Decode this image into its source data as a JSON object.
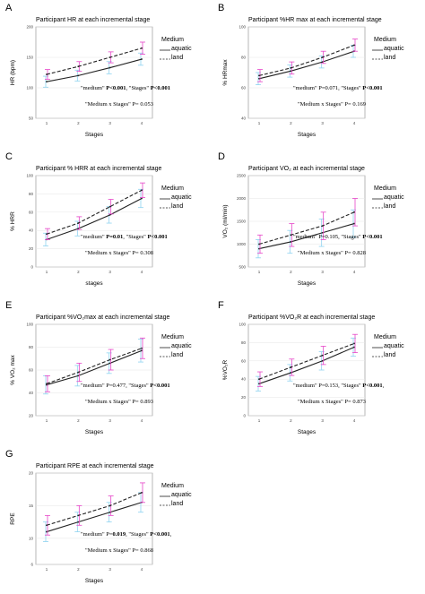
{
  "colors": {
    "aquatic_line": "#222222",
    "land_line": "#222222",
    "aquatic_error": "#8fd3f0",
    "land_error": "#e645c8",
    "axis": "#888888",
    "grid": "#e6e6e6"
  },
  "legend": {
    "title": "Medium",
    "aquatic": "aquatic",
    "land": "land"
  },
  "chart_data": [
    {
      "type": "line",
      "letter": "A",
      "title": "Participant HR at each incremental stage",
      "xlabel": "Stages",
      "ylabel": "HR (bpm)",
      "x": [
        1,
        2,
        3,
        4
      ],
      "ylim": [
        50,
        200
      ],
      "yticks": [
        50,
        100,
        150,
        200
      ],
      "series": [
        {
          "name": "aquatic",
          "style": "solid",
          "values": [
            110,
            120,
            133,
            147
          ],
          "err": [
            9,
            9,
            10,
            10
          ]
        },
        {
          "name": "land",
          "style": "dashed",
          "values": [
            122,
            135,
            150,
            165
          ],
          "err": [
            8,
            8,
            9,
            10
          ]
        }
      ],
      "stats": [
        [
          {
            "t": "\"medium\" ",
            "b": false
          },
          {
            "t": "P<0.001",
            "b": true
          },
          {
            "t": ", \"Stages\" ",
            "b": false
          },
          {
            "t": "P<0.001",
            "b": true
          }
        ],
        [
          {
            "t": "\"Medium x Stages\" P= 0.053",
            "b": false
          }
        ]
      ]
    },
    {
      "type": "line",
      "letter": "B",
      "title": "Participant %HR max at each incremental stage",
      "xlabel": "Stages",
      "ylabel": "% HRmax",
      "x": [
        1,
        2,
        3,
        4
      ],
      "ylim": [
        40,
        100
      ],
      "yticks": [
        40,
        60,
        80,
        100
      ],
      "series": [
        {
          "name": "aquatic",
          "style": "solid",
          "values": [
            66,
            71,
            77,
            84
          ],
          "err": [
            4,
            4,
            4,
            4
          ]
        },
        {
          "name": "land",
          "style": "dashed",
          "values": [
            68,
            73,
            80,
            88
          ],
          "err": [
            4,
            4,
            4,
            4
          ]
        }
      ],
      "stats": [
        [
          {
            "t": "\"medium\" P=0.071, \"Stages\" ",
            "b": false
          },
          {
            "t": "P<0.001",
            "b": true
          }
        ],
        [
          {
            "t": "\"Medium x Stages\" P= 0.169",
            "b": false
          }
        ]
      ]
    },
    {
      "type": "line",
      "letter": "C",
      "title": "Participant % HRR at each incremental stage",
      "xlabel": "stages",
      "ylabel": "% HRR",
      "x": [
        1,
        2,
        3,
        4
      ],
      "ylim": [
        0,
        100
      ],
      "yticks": [
        0,
        20,
        40,
        60,
        80,
        100
      ],
      "series": [
        {
          "name": "aquatic",
          "style": "solid",
          "values": [
            30,
            42,
            57,
            75
          ],
          "err": [
            7,
            8,
            9,
            10
          ]
        },
        {
          "name": "land",
          "style": "dashed",
          "values": [
            36,
            48,
            66,
            84
          ],
          "err": [
            6,
            7,
            8,
            8
          ]
        }
      ],
      "stats": [
        [
          {
            "t": "\"medium\" ",
            "b": false
          },
          {
            "t": "P=0.01",
            "b": true
          },
          {
            "t": ", \"Stages\" ",
            "b": false
          },
          {
            "t": "P<0.001",
            "b": true
          }
        ],
        [
          {
            "t": "\"Medium x Stages\" P= 0.308",
            "b": false
          }
        ]
      ]
    },
    {
      "type": "line",
      "letter": "D",
      "title": "Participant VO₂ at each incremental stage",
      "xlabel": "Stages",
      "ylabel": "VO₂ (ml/min)",
      "x": [
        1,
        2,
        3,
        4
      ],
      "ylim": [
        500,
        2500
      ],
      "yticks": [
        500,
        1000,
        1500,
        2000,
        2500
      ],
      "series": [
        {
          "name": "aquatic",
          "style": "solid",
          "values": [
            900,
            1050,
            1250,
            1450
          ],
          "err": [
            200,
            250,
            300,
            300
          ]
        },
        {
          "name": "land",
          "style": "dashed",
          "values": [
            1000,
            1200,
            1400,
            1700
          ],
          "err": [
            200,
            250,
            300,
            300
          ]
        }
      ],
      "stats": [
        [
          {
            "t": "\"medium\" P=0.105, \"Stages\" ",
            "b": false
          },
          {
            "t": "P<0.001",
            "b": true
          }
        ],
        [
          {
            "t": "\"Medium x Stages\" P= 0.828",
            "b": false
          }
        ]
      ]
    },
    {
      "type": "line",
      "letter": "E",
      "title": "Participant %VO₂max at each incremental stage",
      "xlabel": "Stages",
      "ylabel": "% VO₂ max",
      "x": [
        1,
        2,
        3,
        4
      ],
      "ylim": [
        20,
        100
      ],
      "yticks": [
        20,
        40,
        60,
        80,
        100
      ],
      "series": [
        {
          "name": "aquatic",
          "style": "solid",
          "values": [
            47,
            55,
            66,
            77
          ],
          "err": [
            8,
            9,
            9,
            10
          ]
        },
        {
          "name": "land",
          "style": "dashed",
          "values": [
            48,
            58,
            69,
            79
          ],
          "err": [
            7,
            8,
            9,
            9
          ]
        }
      ],
      "stats": [
        [
          {
            "t": "\"medium\" P=0.477, \"Stages\" ",
            "b": false
          },
          {
            "t": "P<0.001",
            "b": true
          }
        ],
        [
          {
            "t": "\"Medium x Stages\" P= 0.893",
            "b": false
          }
        ]
      ]
    },
    {
      "type": "line",
      "letter": "F",
      "title": "Participant %VO₂R at each incremental stage",
      "xlabel": "Stages",
      "ylabel": "%VO₂R",
      "x": [
        1,
        2,
        3,
        4
      ],
      "ylim": [
        0,
        100
      ],
      "yticks": [
        0,
        20,
        40,
        60,
        80,
        100
      ],
      "series": [
        {
          "name": "aquatic",
          "style": "solid",
          "values": [
            35,
            47,
            60,
            75
          ],
          "err": [
            8,
            9,
            10,
            10
          ]
        },
        {
          "name": "land",
          "style": "dashed",
          "values": [
            40,
            53,
            66,
            79
          ],
          "err": [
            8,
            9,
            10,
            10
          ]
        }
      ],
      "stats": [
        [
          {
            "t": "\"medium\" P=0.153, \"Stages\" ",
            "b": false
          },
          {
            "t": "P<0.001",
            "b": true
          },
          {
            "t": ",",
            "b": false
          }
        ],
        [
          {
            "t": "\"Medium x Stages\" P= 0.873",
            "b": false
          }
        ]
      ]
    },
    {
      "type": "line",
      "letter": "G",
      "title": "Participant RPE at each incremental stage",
      "xlabel": "Stages",
      "ylabel": "RPE",
      "x": [
        1,
        2,
        3,
        4
      ],
      "ylim": [
        6,
        20
      ],
      "yticks": [
        6,
        10,
        15,
        20
      ],
      "series": [
        {
          "name": "aquatic",
          "style": "solid",
          "values": [
            11,
            12.5,
            14,
            15.5
          ],
          "err": [
            1.5,
            1.5,
            1.5,
            1.5
          ]
        },
        {
          "name": "land",
          "style": "dashed",
          "values": [
            12,
            13.5,
            15,
            17
          ],
          "err": [
            1.5,
            1.5,
            1.5,
            1.5
          ]
        }
      ],
      "stats": [
        [
          {
            "t": "\"medium\" P=",
            "b": false
          },
          {
            "t": "0.019",
            "b": true
          },
          {
            "t": ", \"Stages\" ",
            "b": false
          },
          {
            "t": "P<0.001",
            "b": true
          },
          {
            "t": ",",
            "b": false
          }
        ],
        [
          {
            "t": "\"Medium x Stages\" P= 0.868",
            "b": false
          }
        ]
      ]
    }
  ]
}
